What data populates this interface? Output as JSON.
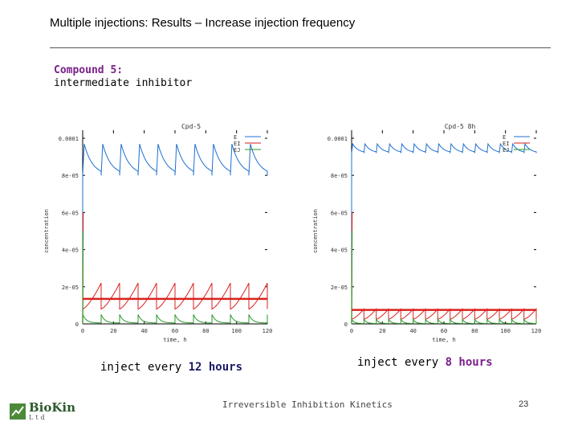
{
  "slide": {
    "title": "Multiple injections: Results – Increase injection frequency",
    "compound_name": "Compound 5:",
    "compound_desc": "intermediate inhibitor",
    "caption_left_prefix": "inject every ",
    "caption_left_bold": "12 hours",
    "caption_right_prefix": "inject every ",
    "caption_right_bold": "8 hours",
    "footer": "Irreversible Inhibition Kinetics",
    "page_number": "23",
    "logo_name": "BioKin",
    "logo_sub": "Ltd"
  },
  "colors": {
    "E": "#1f6fd1",
    "EI": "#d9221e",
    "EJ": "#2a9a2a",
    "marker": "#d9221e",
    "caption_left_hl": "#1a1a66",
    "caption_right_hl": "#7a1f8a"
  },
  "chart_data": [
    {
      "type": "line",
      "title": "Cpd-5",
      "xlabel": "time, h",
      "ylabel": "concentration",
      "x_ticks": [
        "0",
        "20",
        "40",
        "60",
        "80",
        "100",
        "120"
      ],
      "y_ticks": [
        "0",
        "2e-05",
        "4e-05",
        "6e-05",
        "8e-05",
        "0.0001"
      ],
      "xlim": [
        0,
        120
      ],
      "ylim": [
        0,
        0.0001
      ],
      "legend": [
        "E",
        "EI",
        "EJ"
      ],
      "legend_position": "top-right",
      "injection_interval_h": 12,
      "series": [
        {
          "name": "E",
          "peak": 9.7e-05,
          "trough": 8e-05
        },
        {
          "name": "EI",
          "peak": 2.2e-05,
          "trough": 8e-06
        },
        {
          "name": "EJ",
          "peak": 5e-06,
          "trough": 5e-07
        }
      ],
      "average_EI_level": 1.35e-05
    },
    {
      "type": "line",
      "title": "Cpd-5 8h",
      "xlabel": "time, h",
      "ylabel": "concentration",
      "x_ticks": [
        "0",
        "20",
        "40",
        "60",
        "80",
        "100",
        "120"
      ],
      "y_ticks": [
        "0",
        "2e-05",
        "4e-05",
        "6e-05",
        "8e-05",
        "0.0001"
      ],
      "xlim": [
        0,
        120
      ],
      "ylim": [
        0,
        0.0001
      ],
      "legend": [
        "E",
        "EI",
        "EJ"
      ],
      "legend_position": "top-right",
      "injection_interval_h": 8,
      "series": [
        {
          "name": "E",
          "peak": 9.7e-05,
          "trough": 9.2e-05
        },
        {
          "name": "EI",
          "peak": 8e-06,
          "trough": 2.5e-06
        },
        {
          "name": "EJ",
          "peak": 2.5e-06,
          "trough": 2e-07
        }
      ],
      "average_EI_level": 7.5e-06
    }
  ]
}
